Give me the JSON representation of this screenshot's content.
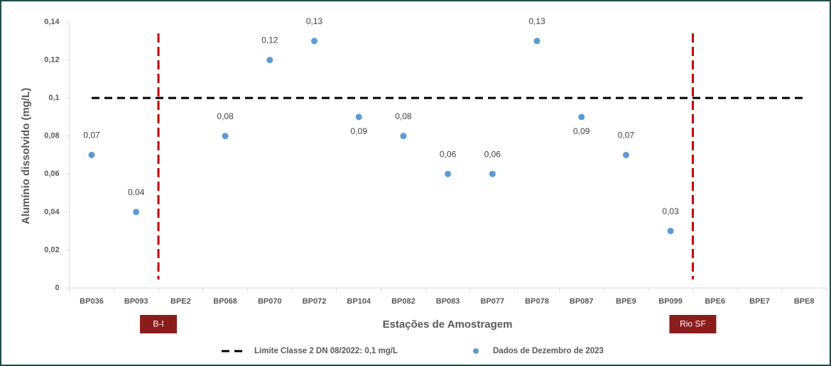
{
  "chart_data": {
    "type": "scatter",
    "categories": [
      "BP036",
      "BP093",
      "BPE2",
      "BP068",
      "BP070",
      "BP072",
      "BP104",
      "BP082",
      "BP083",
      "BP077",
      "BP078",
      "BP087",
      "BPE9",
      "BP099",
      "BPE6",
      "BPE7",
      "BPE8"
    ],
    "series": [
      {
        "name": "Dados de Dezembro de 2023",
        "color": "#5b9bd5",
        "values": [
          0.07,
          0.04,
          null,
          0.08,
          0.12,
          0.13,
          0.09,
          0.08,
          0.06,
          0.06,
          0.13,
          0.09,
          0.07,
          0.03,
          null,
          null,
          null
        ],
        "value_labels": [
          "0,07",
          "0,04",
          null,
          "0,08",
          "0,12",
          "0,13",
          "0,09",
          "0,08",
          "0,06",
          "0,06",
          "0,13",
          "0,09",
          "0,07",
          "0,03",
          null,
          null,
          null
        ]
      }
    ],
    "reference_line": {
      "name": "Limite Classe 2 DN 08/2022: 0,1 mg/L",
      "value": 0.1,
      "color": "#000000"
    },
    "dividers": [
      {
        "label": "B-I",
        "color": "#c00000"
      },
      {
        "label": "Rio SF",
        "color": "#c00000"
      }
    ],
    "ylim": [
      0,
      0.14
    ],
    "yticks": [
      0,
      {
        "value": 0.02,
        "label": "0,02"
      },
      {
        "value": 0.04,
        "label": "0,04"
      },
      {
        "value": 0.06,
        "label": "0,06"
      },
      {
        "value": 0.08,
        "label": "0,08"
      },
      {
        "value": 0.1,
        "label": "0,1"
      },
      {
        "value": 0.12,
        "label": "0,12"
      },
      {
        "value": 0.14,
        "label": "0,14"
      }
    ],
    "xlabel": "Estações de Amostragem",
    "ylabel": "Alumínio dissolvido (mg/L)",
    "grid": false
  }
}
